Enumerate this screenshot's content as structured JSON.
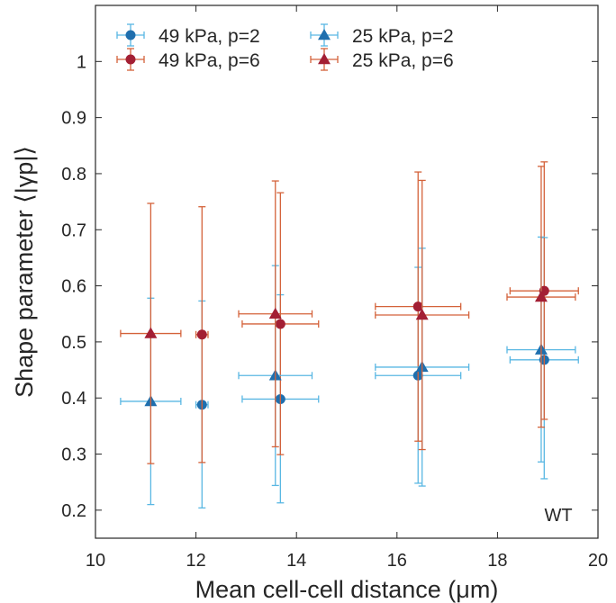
{
  "chart_data": {
    "type": "scatter",
    "xlabel": "Mean cell-cell distance (μm)",
    "ylabel": "Shape parameter ⟨|γp|⟩",
    "xlim": [
      10,
      20
    ],
    "ylim": [
      0.15,
      1.1
    ],
    "xticks": [
      10,
      12,
      14,
      16,
      18,
      20
    ],
    "yticks": [
      0.2,
      0.3,
      0.4,
      0.5,
      0.6,
      0.7,
      0.8,
      0.9,
      1
    ],
    "xtick_labels": [
      "10",
      "12",
      "14",
      "16",
      "18",
      "20"
    ],
    "ytick_labels": [
      "0.2",
      "0.3",
      "0.4",
      "0.5",
      "0.6",
      "0.7",
      "0.8",
      "0.9",
      "1"
    ],
    "annotation": "WT",
    "legend_position": "top-left",
    "series": [
      {
        "name": "49 kPa, p=2",
        "marker": "circle",
        "marker_color": "#1f6fae",
        "errorbar_color": "#59b7e3",
        "points": [
          {
            "x": 12.12,
            "y": 0.388,
            "xerr": 0.12,
            "yerr_low": 0.184,
            "yerr_high": 0.185
          },
          {
            "x": 13.68,
            "y": 0.398,
            "xerr": 0.76,
            "yerr_low": 0.185,
            "yerr_high": 0.186
          },
          {
            "x": 16.42,
            "y": 0.44,
            "xerr": 0.85,
            "yerr_low": 0.192,
            "yerr_high": 0.193
          },
          {
            "x": 18.93,
            "y": 0.468,
            "xerr": 0.68,
            "yerr_low": 0.212,
            "yerr_high": 0.218
          }
        ]
      },
      {
        "name": "49 kPa, p=6",
        "marker": "circle",
        "marker_color": "#a31f34",
        "errorbar_color": "#d4623a",
        "points": [
          {
            "x": 12.12,
            "y": 0.513,
            "xerr": 0.12,
            "yerr_low": 0.228,
            "yerr_high": 0.228
          },
          {
            "x": 13.68,
            "y": 0.532,
            "xerr": 0.76,
            "yerr_low": 0.233,
            "yerr_high": 0.234
          },
          {
            "x": 16.42,
            "y": 0.563,
            "xerr": 0.85,
            "yerr_low": 0.24,
            "yerr_high": 0.24
          },
          {
            "x": 18.93,
            "y": 0.591,
            "xerr": 0.68,
            "yerr_low": 0.229,
            "yerr_high": 0.23
          }
        ]
      },
      {
        "name": "25 kPa, p=2",
        "marker": "triangle",
        "marker_color": "#1f6fae",
        "errorbar_color": "#59b7e3",
        "points": [
          {
            "x": 11.1,
            "y": 0.394,
            "xerr": 0.6,
            "yerr_low": 0.184,
            "yerr_high": 0.184
          },
          {
            "x": 13.58,
            "y": 0.44,
            "xerr": 0.73,
            "yerr_low": 0.196,
            "yerr_high": 0.196
          },
          {
            "x": 16.5,
            "y": 0.455,
            "xerr": 0.93,
            "yerr_low": 0.212,
            "yerr_high": 0.212
          },
          {
            "x": 18.87,
            "y": 0.486,
            "xerr": 0.68,
            "yerr_low": 0.2,
            "yerr_high": 0.201
          }
        ]
      },
      {
        "name": "25 kPa, p=6",
        "marker": "triangle",
        "marker_color": "#a31f34",
        "errorbar_color": "#d4623a",
        "points": [
          {
            "x": 11.1,
            "y": 0.515,
            "xerr": 0.6,
            "yerr_low": 0.232,
            "yerr_high": 0.232
          },
          {
            "x": 13.58,
            "y": 0.55,
            "xerr": 0.73,
            "yerr_low": 0.237,
            "yerr_high": 0.237
          },
          {
            "x": 16.5,
            "y": 0.548,
            "xerr": 0.93,
            "yerr_low": 0.24,
            "yerr_high": 0.24
          },
          {
            "x": 18.87,
            "y": 0.58,
            "xerr": 0.68,
            "yerr_low": 0.232,
            "yerr_high": 0.233
          }
        ]
      }
    ]
  }
}
